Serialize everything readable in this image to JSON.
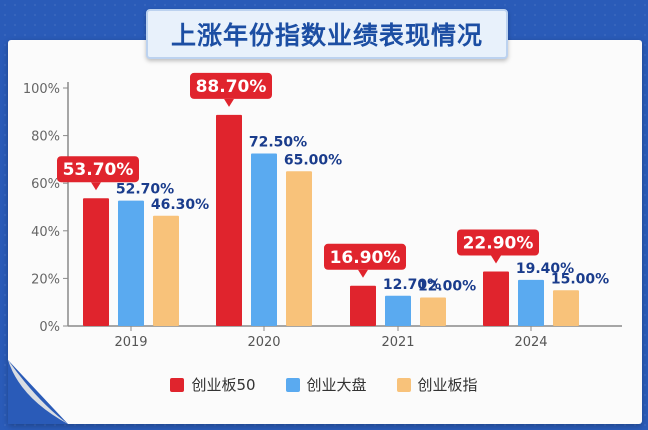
{
  "title": "上涨年份指数业绩表现情况",
  "colors": {
    "background": "#2a5bb8",
    "series": [
      "#e0242d",
      "#5aaaf0",
      "#f8c27a"
    ],
    "label_box": "#e0242d",
    "label_text": "#1a3c8c"
  },
  "chart_data": {
    "type": "bar",
    "categories": [
      "2019",
      "2020",
      "2021",
      "2024"
    ],
    "series": [
      {
        "name": "创业板50",
        "values": [
          53.7,
          88.7,
          16.9,
          22.9
        ],
        "labels": [
          "53.70%",
          "88.70%",
          "16.90%",
          "22.90%"
        ]
      },
      {
        "name": "创业大盘",
        "values": [
          52.7,
          72.5,
          12.7,
          19.4
        ],
        "labels": [
          "52.70%",
          "72.50%",
          "12.70%",
          "19.40%"
        ]
      },
      {
        "name": "创业板指",
        "values": [
          46.3,
          65.0,
          12.0,
          15.0
        ],
        "labels": [
          "46.30%",
          "65.00%",
          "12.00%",
          "15.00%"
        ]
      }
    ],
    "ylim": [
      0,
      100
    ],
    "yticks": [
      "0%",
      "20%",
      "40%",
      "60%",
      "80%",
      "100%"
    ],
    "grid": false,
    "legend_position": "bottom"
  }
}
